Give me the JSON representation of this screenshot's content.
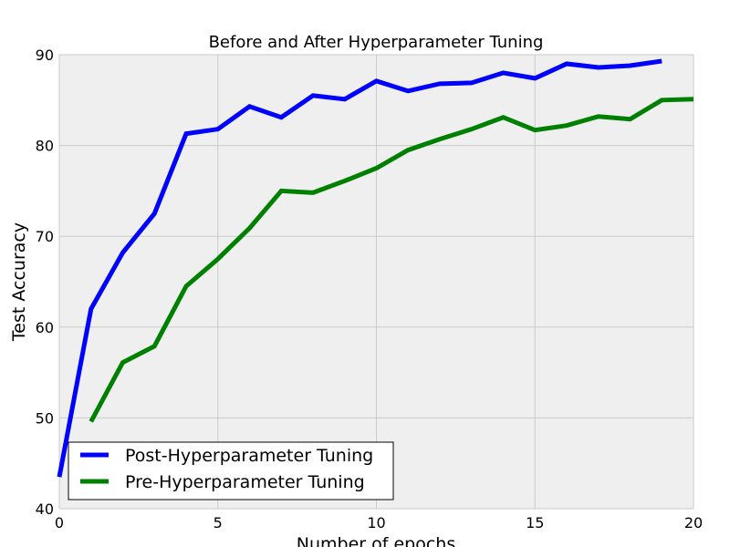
{
  "chart_data": {
    "type": "line",
    "title": "Before and After Hyperparameter Tuning",
    "xlabel": "Number of epochs",
    "ylabel": "Test Accuracy",
    "xlim": [
      0,
      20
    ],
    "ylim": [
      40,
      90
    ],
    "xticks": [
      0,
      5,
      10,
      15,
      20
    ],
    "yticks": [
      40,
      50,
      60,
      70,
      80,
      90
    ],
    "grid": true,
    "legend_position": "lower-left",
    "colors": {
      "background": "#efefef",
      "grid": "#cbcbcb"
    },
    "series": [
      {
        "name": "Post-Hyperparameter Tuning",
        "color": "#0000ff",
        "x": [
          0,
          1,
          2,
          3,
          4,
          5,
          6,
          7,
          8,
          9,
          10,
          11,
          12,
          13,
          14,
          15,
          16,
          17,
          18,
          19
        ],
        "values": [
          43.5,
          62.0,
          68.2,
          72.5,
          81.3,
          81.8,
          84.3,
          83.1,
          85.5,
          85.1,
          87.1,
          86.0,
          86.8,
          86.9,
          88.0,
          87.4,
          89.0,
          88.6,
          88.8,
          89.3
        ]
      },
      {
        "name": "Pre-Hyperparameter Tuning",
        "color": "#008000",
        "x": [
          1,
          2,
          3,
          4,
          5,
          6,
          7,
          8,
          9,
          10,
          11,
          12,
          13,
          14,
          15,
          16,
          17,
          18,
          19,
          20
        ],
        "values": [
          49.6,
          56.1,
          57.9,
          64.5,
          67.5,
          70.9,
          75.0,
          74.8,
          76.1,
          77.5,
          79.5,
          80.7,
          81.8,
          83.1,
          81.7,
          82.2,
          83.2,
          82.9,
          85.0,
          85.1
        ]
      }
    ]
  }
}
